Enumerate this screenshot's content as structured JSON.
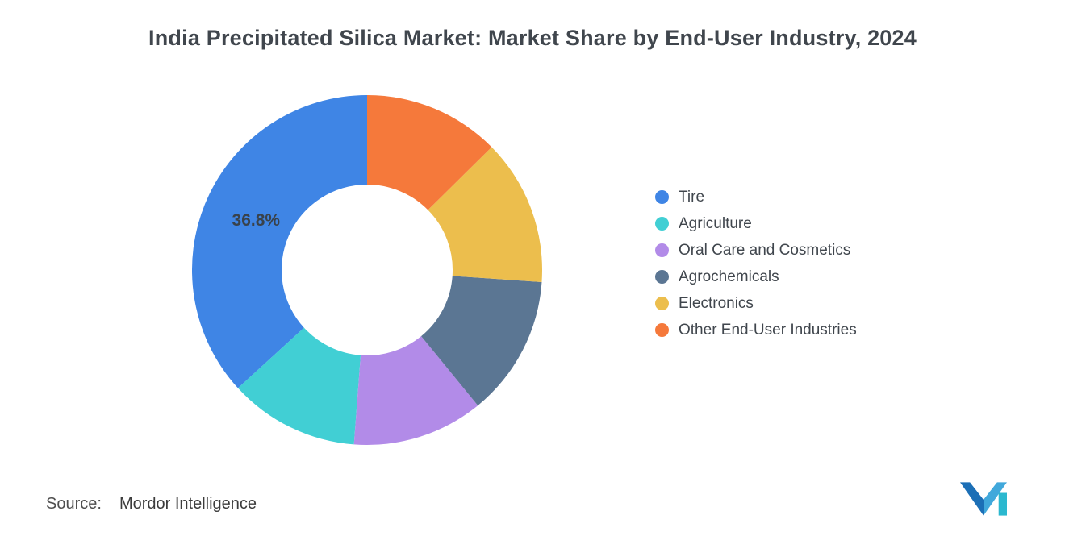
{
  "chart_data": {
    "type": "pie",
    "subtype": "donut",
    "title": "India Precipitated Silica Market: Market Share by End-User Industry, 2024",
    "categories": [
      "Tire",
      "Agriculture",
      "Oral Care and Cosmetics",
      "Agrochemicals",
      "Electronics",
      "Other End-User Industries"
    ],
    "values": [
      36.8,
      12.0,
      12.1,
      13.0,
      13.5,
      12.6
    ],
    "unit": "%",
    "colors": [
      "#3F85E5",
      "#41CFD4",
      "#B28BE8",
      "#5B7693",
      "#ECBE4D",
      "#F5793B"
    ],
    "data_labels": [
      "36.8%",
      "",
      "",
      "",
      "",
      ""
    ],
    "data_label_color": "#39424B",
    "start_angle_deg": -90,
    "direction": "counterclockwise",
    "inner_radius_ratio": 0.49,
    "legend_position": "right",
    "grid": false
  },
  "title_color": "#40464D",
  "legend": {
    "text_color": "#40464D"
  },
  "footer": {
    "source_label": "Source:",
    "source_value": "Mordor Intelligence",
    "logo_name": "mordor-intelligence-logo",
    "logo_colors": [
      "#1C6FB6",
      "#41A8DB",
      "#2BB8CF"
    ]
  }
}
